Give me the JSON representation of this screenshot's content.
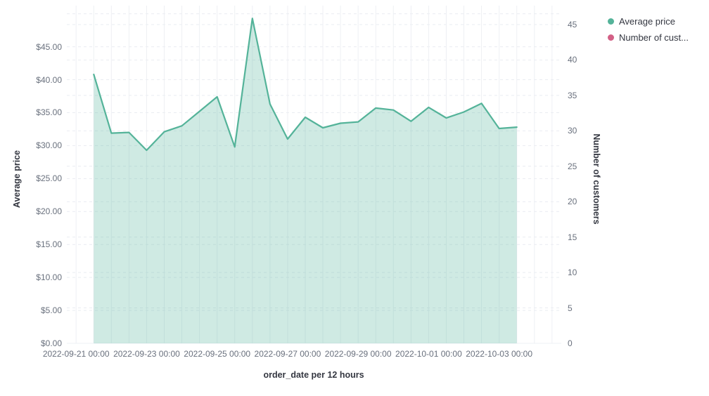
{
  "colors": {
    "series_green": "#54B399",
    "series_green_fill_opacity": 0.28,
    "series_pink": "#D36086",
    "tick_label": "#69707d",
    "axis_title": "#343741",
    "gridline_vertical": "#eef0f4",
    "gridline_dashed": "#e9ecf1"
  },
  "legend": {
    "items": [
      {
        "label": "Average price",
        "color": "#54B399"
      },
      {
        "label": "Number of cust...",
        "color": "#D36086"
      }
    ]
  },
  "chart_data": {
    "type": "area",
    "title": "",
    "xlabel": "order_date per 12 hours",
    "ylabel_left": "Average price",
    "ylabel_right": "Number of customers",
    "legend_position": "top-right",
    "grid": "on",
    "x_interval": "12 hours",
    "x": [
      "2022-09-21 12:00",
      "2022-09-22 00:00",
      "2022-09-22 12:00",
      "2022-09-23 00:00",
      "2022-09-23 12:00",
      "2022-09-24 00:00",
      "2022-09-24 12:00",
      "2022-09-25 00:00",
      "2022-09-25 12:00",
      "2022-09-26 00:00",
      "2022-09-26 12:00",
      "2022-09-27 00:00",
      "2022-09-27 12:00",
      "2022-09-28 00:00",
      "2022-09-28 12:00",
      "2022-09-29 00:00",
      "2022-09-29 12:00",
      "2022-09-30 00:00",
      "2022-09-30 12:00",
      "2022-10-01 00:00",
      "2022-10-01 12:00",
      "2022-10-02 00:00",
      "2022-10-02 12:00",
      "2022-10-03 00:00",
      "2022-10-03 12:00"
    ],
    "series": [
      {
        "name": "Average price",
        "axis": "left",
        "color": "#54B399",
        "values": [
          40.8,
          31.9,
          32.0,
          29.3,
          32.1,
          33.0,
          35.2,
          37.4,
          29.8,
          49.3,
          36.3,
          31.0,
          34.3,
          32.7,
          33.4,
          33.6,
          35.7,
          35.4,
          33.7,
          35.8,
          34.2,
          35.1,
          36.4,
          32.6,
          32.8
        ]
      },
      {
        "name": "Number of customers",
        "axis": "right",
        "color": "#D36086",
        "values": []
      }
    ],
    "y_left_axis": {
      "tick_labels": [
        "$0.00",
        "$5.00",
        "$10.00",
        "$15.00",
        "$20.00",
        "$25.00",
        "$30.00",
        "$35.00",
        "$40.00",
        "$45.00"
      ],
      "tick_values": [
        0,
        5,
        10,
        15,
        20,
        25,
        30,
        35,
        40,
        45
      ],
      "range": [
        0,
        51.2
      ]
    },
    "y_right_axis": {
      "tick_labels": [
        "0",
        "5",
        "10",
        "15",
        "20",
        "25",
        "30",
        "35",
        "40",
        "45"
      ],
      "tick_values": [
        0,
        5,
        10,
        15,
        20,
        25,
        30,
        35,
        40,
        45
      ],
      "range": [
        0,
        47.7
      ]
    },
    "x_axis": {
      "tick_labels": [
        "2022-09-21 00:00",
        "2022-09-23 00:00",
        "2022-09-25 00:00",
        "2022-09-27 00:00",
        "2022-09-29 00:00",
        "2022-10-01 00:00",
        "2022-10-03 00:00"
      ],
      "tick_slots": [
        0,
        4,
        8,
        12,
        16,
        20,
        24
      ]
    }
  }
}
